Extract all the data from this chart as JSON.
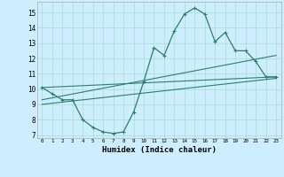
{
  "title": "",
  "xlabel": "Humidex (Indice chaleur)",
  "bg_color": "#cceeff",
  "line_color": "#2e7d6e",
  "grid_color": "#aaddcc",
  "xlim": [
    -0.5,
    23.5
  ],
  "ylim": [
    6.8,
    15.7
  ],
  "yticks": [
    7,
    8,
    9,
    10,
    11,
    12,
    13,
    14,
    15
  ],
  "xticks": [
    0,
    1,
    2,
    3,
    4,
    5,
    6,
    7,
    8,
    9,
    10,
    11,
    12,
    13,
    14,
    15,
    16,
    17,
    18,
    19,
    20,
    21,
    22,
    23
  ],
  "main_x": [
    0,
    1,
    2,
    3,
    4,
    5,
    6,
    7,
    8,
    9,
    10,
    11,
    12,
    13,
    14,
    15,
    16,
    17,
    18,
    19,
    20,
    21,
    22,
    23
  ],
  "main_y": [
    10.1,
    9.7,
    9.3,
    9.3,
    8.0,
    7.5,
    7.2,
    7.1,
    7.2,
    8.5,
    10.5,
    12.7,
    12.2,
    13.8,
    14.9,
    15.3,
    14.9,
    13.1,
    13.7,
    12.5,
    12.5,
    11.8,
    10.8,
    10.8
  ],
  "line1_x": [
    0,
    23
  ],
  "line1_y": [
    10.1,
    10.8
  ],
  "line2_x": [
    0,
    23
  ],
  "line2_y": [
    9.3,
    12.2
  ],
  "line3_x": [
    0,
    23
  ],
  "line3_y": [
    9.0,
    10.7
  ]
}
